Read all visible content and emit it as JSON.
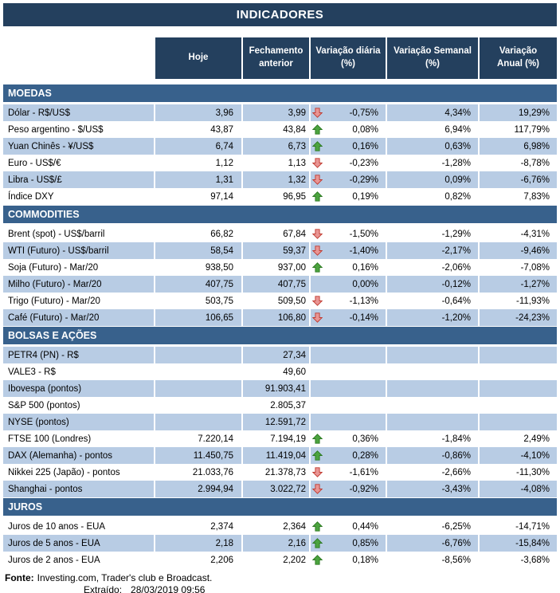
{
  "title": "INDICADORES",
  "columns": [
    {
      "label": "Hoje"
    },
    {
      "label": "Fechamento\nanterior"
    },
    {
      "label": "Variação diária\n(%)"
    },
    {
      "label": "Variação Semanal\n(%)"
    },
    {
      "label": "Variação\nAnual (%)"
    }
  ],
  "sections": [
    {
      "name": "MOEDAS",
      "rows": [
        {
          "label": "Dólar - R$/US$",
          "hoje": "3,96",
          "fechamento": "3,99",
          "arrow": "down",
          "diaria": "-0,75%",
          "semanal": "4,34%",
          "anual": "19,29%"
        },
        {
          "label": "Peso argentino - $/US$",
          "hoje": "43,87",
          "fechamento": "43,84",
          "arrow": "up",
          "diaria": "0,08%",
          "semanal": "6,94%",
          "anual": "117,79%"
        },
        {
          "label": "Yuan Chinês - ¥/US$",
          "hoje": "6,74",
          "fechamento": "6,73",
          "arrow": "up",
          "diaria": "0,16%",
          "semanal": "0,63%",
          "anual": "6,98%"
        },
        {
          "label": "Euro - US$/€",
          "hoje": "1,12",
          "fechamento": "1,13",
          "arrow": "down",
          "diaria": "-0,23%",
          "semanal": "-1,28%",
          "anual": "-8,78%"
        },
        {
          "label": "Libra - US$/£",
          "hoje": "1,31",
          "fechamento": "1,32",
          "arrow": "down",
          "diaria": "-0,29%",
          "semanal": "0,09%",
          "anual": "-6,76%"
        },
        {
          "label": "Índice DXY",
          "hoje": "97,14",
          "fechamento": "96,95",
          "arrow": "up",
          "diaria": "0,19%",
          "semanal": "0,82%",
          "anual": "7,83%"
        }
      ]
    },
    {
      "name": "COMMODITIES",
      "rows": [
        {
          "label": "Brent (spot) - US$/barril",
          "hoje": "66,82",
          "fechamento": "67,84",
          "arrow": "down",
          "diaria": "-1,50%",
          "semanal": "-1,29%",
          "anual": "-4,31%"
        },
        {
          "label": "WTI (Futuro) - US$/barril",
          "hoje": "58,54",
          "fechamento": "59,37",
          "arrow": "down",
          "diaria": "-1,40%",
          "semanal": "-2,17%",
          "anual": "-9,46%"
        },
        {
          "label": "Soja (Futuro) - Mar/20",
          "hoje": "938,50",
          "fechamento": "937,00",
          "arrow": "up",
          "diaria": "0,16%",
          "semanal": "-2,06%",
          "anual": "-7,08%"
        },
        {
          "label": "Milho (Futuro) - Mar/20",
          "hoje": "407,75",
          "fechamento": "407,75",
          "arrow": "none",
          "diaria": "0,00%",
          "semanal": "-0,12%",
          "anual": "-1,27%"
        },
        {
          "label": "Trigo (Futuro) - Mar/20",
          "hoje": "503,75",
          "fechamento": "509,50",
          "arrow": "down",
          "diaria": "-1,13%",
          "semanal": "-0,64%",
          "anual": "-11,93%"
        },
        {
          "label": "Café (Futuro) - Mar/20",
          "hoje": "106,65",
          "fechamento": "106,80",
          "arrow": "down",
          "diaria": "-0,14%",
          "semanal": "-1,20%",
          "anual": "-24,23%"
        }
      ]
    },
    {
      "name": "BOLSAS E AÇÕES",
      "rows": [
        {
          "label": "PETR4 (PN) - R$",
          "hoje": "",
          "fechamento": "27,34",
          "arrow": "none",
          "diaria": "",
          "semanal": "",
          "anual": ""
        },
        {
          "label": "VALE3 - R$",
          "hoje": "",
          "fechamento": "49,60",
          "arrow": "none",
          "diaria": "",
          "semanal": "",
          "anual": ""
        },
        {
          "label": "Ibovespa (pontos)",
          "hoje": "",
          "fechamento": "91.903,41",
          "arrow": "none",
          "diaria": "",
          "semanal": "",
          "anual": ""
        },
        {
          "label": "S&P 500 (pontos)",
          "hoje": "",
          "fechamento": "2.805,37",
          "arrow": "none",
          "diaria": "",
          "semanal": "",
          "anual": ""
        },
        {
          "label": "NYSE (pontos)",
          "hoje": "",
          "fechamento": "12.591,72",
          "arrow": "none",
          "diaria": "",
          "semanal": "",
          "anual": ""
        },
        {
          "label": "FTSE 100 (Londres)",
          "hoje": "7.220,14",
          "fechamento": "7.194,19",
          "arrow": "up",
          "diaria": "0,36%",
          "semanal": "-1,84%",
          "anual": "2,49%"
        },
        {
          "label": "DAX (Alemanha) - pontos",
          "hoje": "11.450,75",
          "fechamento": "11.419,04",
          "arrow": "up",
          "diaria": "0,28%",
          "semanal": "-0,86%",
          "anual": "-4,10%"
        },
        {
          "label": "Nikkei 225 (Japão) - pontos",
          "hoje": "21.033,76",
          "fechamento": "21.378,73",
          "arrow": "down",
          "diaria": "-1,61%",
          "semanal": "-2,66%",
          "anual": "-11,30%"
        },
        {
          "label": "Shanghai - pontos",
          "hoje": "2.994,94",
          "fechamento": "3.022,72",
          "arrow": "down",
          "diaria": "-0,92%",
          "semanal": "-3,43%",
          "anual": "-4,08%"
        }
      ]
    },
    {
      "name": "JUROS",
      "rows": [
        {
          "label": "Juros de 10 anos - EUA",
          "hoje": "2,374",
          "fechamento": "2,364",
          "arrow": "up",
          "diaria": "0,44%",
          "semanal": "-6,25%",
          "anual": "-14,71%"
        },
        {
          "label": "Juros de 5 anos - EUA",
          "hoje": "2,18",
          "fechamento": "2,16",
          "arrow": "up",
          "diaria": "0,85%",
          "semanal": "-6,76%",
          "anual": "-15,84%"
        },
        {
          "label": "Juros de 2 anos - EUA",
          "hoje": "2,206",
          "fechamento": "2,202",
          "arrow": "up",
          "diaria": "0,18%",
          "semanal": "-8,56%",
          "anual": "-3,68%"
        }
      ]
    }
  ],
  "footer": {
    "fonte_label": "Fonte:",
    "fonte_rest": "Investing.com, Trader's club e Broadcast.",
    "extraido_label": "Extraído:",
    "extraido_value": "28/03/2019 09:56"
  },
  "colors": {
    "header_bg": "#24405E",
    "section_bg": "#38618C",
    "row_shade": "#B8CCE4",
    "arrow_up_fill": "#4CA33F",
    "arrow_up_border": "#2C7A21",
    "arrow_down_fill": "#E99593",
    "arrow_down_border": "#C0392F"
  }
}
